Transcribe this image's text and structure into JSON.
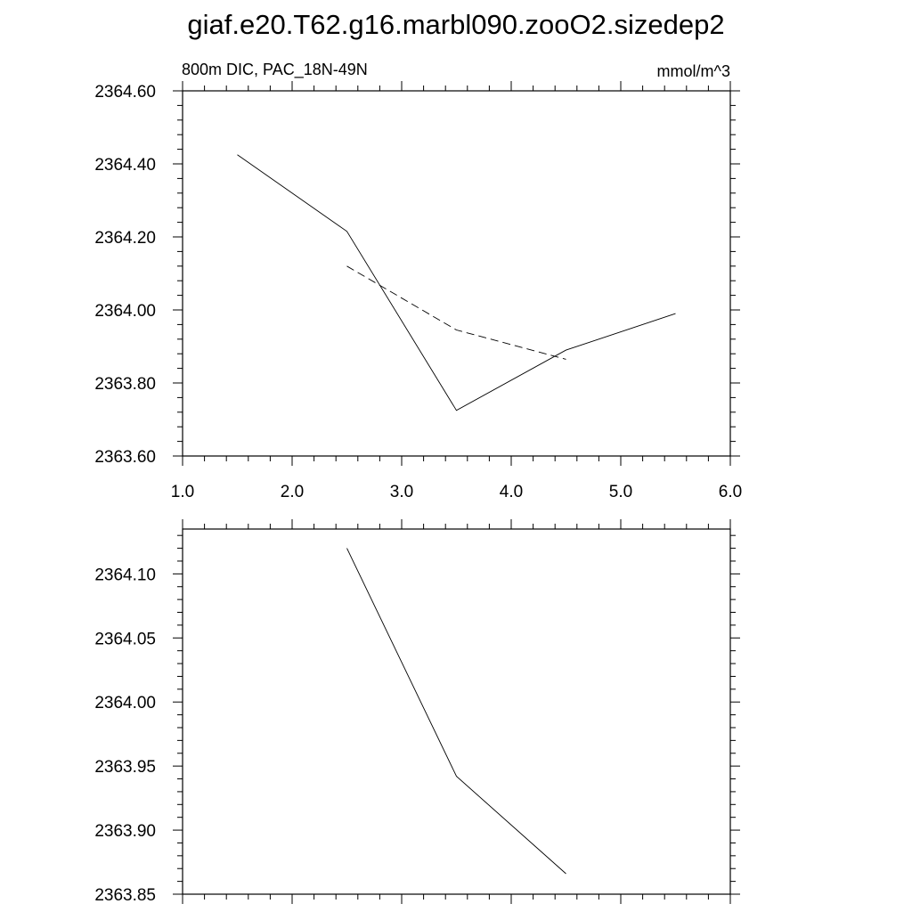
{
  "title": "giaf.e20.T62.g16.marbl090.zooO2.sizedep2",
  "chart_data": [
    {
      "type": "line",
      "title": "",
      "left_label": "800m DIC, PAC_18N-49N",
      "right_label": "mmol/m^3",
      "xlim": [
        1.0,
        6.0
      ],
      "ylim": [
        2363.6,
        2364.6
      ],
      "xtick_labels": [
        "1.0",
        "2.0",
        "3.0",
        "4.0",
        "5.0",
        "6.0"
      ],
      "ytick_labels": [
        "2363.60",
        "2363.80",
        "2364.00",
        "2364.20",
        "2364.40",
        "2364.60"
      ],
      "series": [
        {
          "style": "solid",
          "x": [
            1.5,
            2.5,
            3.5,
            4.5,
            5.5
          ],
          "y": [
            2364.425,
            2364.215,
            2363.725,
            2363.89,
            2363.99
          ]
        },
        {
          "style": "dashed",
          "x": [
            2.5,
            3.5,
            4.5
          ],
          "y": [
            2364.12,
            2363.945,
            2363.865
          ]
        }
      ]
    },
    {
      "type": "line",
      "title": "",
      "xlim": [
        1.0,
        6.0
      ],
      "ylim": [
        2363.85,
        2364.135
      ],
      "xtick_labels": [],
      "ytick_labels": [
        "2363.85",
        "2363.90",
        "2363.95",
        "2364.00",
        "2364.05",
        "2364.10"
      ],
      "series": [
        {
          "style": "solid",
          "x": [
            2.5,
            3.5,
            4.5
          ],
          "y": [
            2364.12,
            2363.942,
            2363.866
          ]
        }
      ]
    }
  ]
}
